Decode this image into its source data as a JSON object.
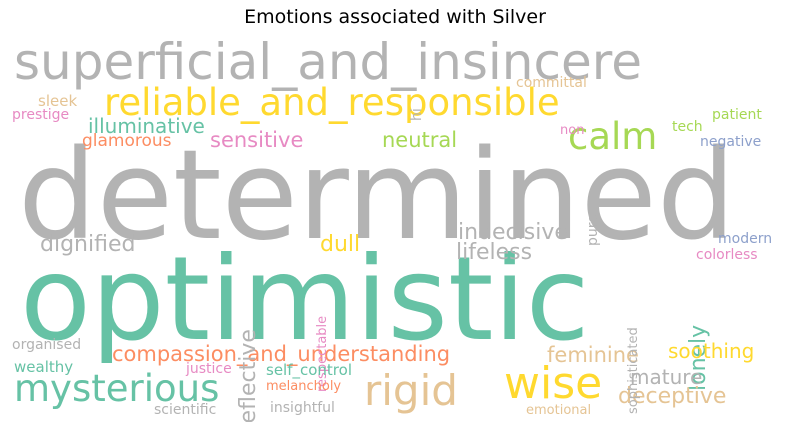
{
  "title": "Emotions associated with Silver",
  "palette": {
    "gray": "#b3b3b3",
    "teal": "#66c2a5",
    "orange": "#fc8d62",
    "blue": "#8da0cb",
    "pink": "#e78ac3",
    "green": "#a6d854",
    "yellow": "#ffd92f",
    "tan": "#e5c494"
  },
  "words": [
    {
      "text": "determined",
      "color": "gray"
    },
    {
      "text": "optimistic",
      "color": "teal"
    },
    {
      "text": "superficial_and_insincere",
      "color": "gray"
    },
    {
      "text": "reliable_and_responsible",
      "color": "yellow"
    },
    {
      "text": "calm",
      "color": "green"
    },
    {
      "text": "wise",
      "color": "yellow"
    },
    {
      "text": "rigid",
      "color": "tan"
    },
    {
      "text": "mysterious",
      "color": "teal"
    },
    {
      "text": "compassion_and_understanding",
      "color": "orange"
    },
    {
      "text": "illuminative",
      "color": "teal"
    },
    {
      "text": "sensitive",
      "color": "pink"
    },
    {
      "text": "neutral",
      "color": "green"
    },
    {
      "text": "glamorous",
      "color": "orange"
    },
    {
      "text": "dignified",
      "color": "gray"
    },
    {
      "text": "dull",
      "color": "yellow"
    },
    {
      "text": "indecisive",
      "color": "gray"
    },
    {
      "text": "lifeless",
      "color": "gray"
    },
    {
      "text": "lonely",
      "color": "teal"
    },
    {
      "text": "reflective",
      "color": "gray"
    },
    {
      "text": "feminine",
      "color": "tan"
    },
    {
      "text": "soothing",
      "color": "yellow"
    },
    {
      "text": "mature",
      "color": "gray"
    },
    {
      "text": "deceptive",
      "color": "tan"
    },
    {
      "text": "sleek",
      "color": "tan"
    },
    {
      "text": "prestige",
      "color": "pink"
    },
    {
      "text": "hi",
      "color": "gray"
    },
    {
      "text": "committal",
      "color": "tan"
    },
    {
      "text": "patient",
      "color": "green"
    },
    {
      "text": "tech",
      "color": "green"
    },
    {
      "text": "negative",
      "color": "blue"
    },
    {
      "text": "non",
      "color": "pink"
    },
    {
      "text": "pure",
      "color": "gray"
    },
    {
      "text": "sophisticated",
      "color": "gray"
    },
    {
      "text": "respectable",
      "color": "pink"
    },
    {
      "text": "modern",
      "color": "blue"
    },
    {
      "text": "colorless",
      "color": "pink"
    },
    {
      "text": "organised",
      "color": "gray"
    },
    {
      "text": "wealthy",
      "color": "teal"
    },
    {
      "text": "justice",
      "color": "pink"
    },
    {
      "text": "self_control",
      "color": "teal"
    },
    {
      "text": "melancholy",
      "color": "orange"
    },
    {
      "text": "scientific",
      "color": "gray"
    },
    {
      "text": "insightful",
      "color": "gray"
    },
    {
      "text": "emotional",
      "color": "tan"
    }
  ]
}
